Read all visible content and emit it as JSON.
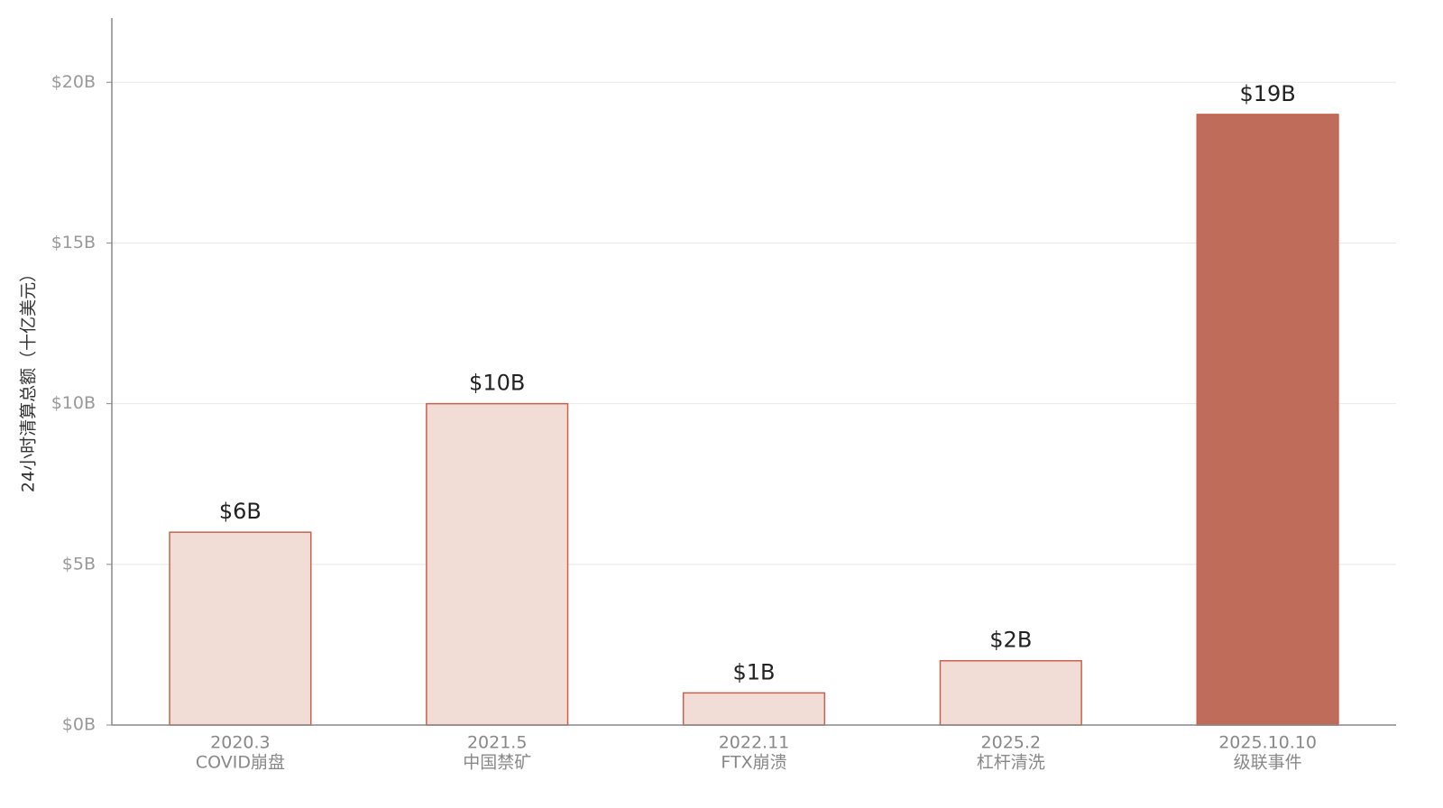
{
  "chart_data": {
    "type": "bar",
    "y_label": "24小时清算总额（十亿美元）",
    "categories": [
      [
        "2020.3",
        "COVID崩盘"
      ],
      [
        "2021.5",
        "中国禁矿"
      ],
      [
        "2022.11",
        "FTX崩溃"
      ],
      [
        "2025.2",
        "杠杆清洗"
      ],
      [
        "2025.10.10",
        "级联事件"
      ]
    ],
    "values": [
      6,
      10,
      1,
      2,
      19
    ],
    "value_labels": [
      "$6B",
      "$10B",
      "$1B",
      "$2B",
      "$19B"
    ],
    "colors": [
      "#f2ddd6",
      "#f2ddd6",
      "#f2ddd6",
      "#f2ddd6",
      "#bf6c5a"
    ],
    "edge_color": "#c8614d",
    "ylim": [
      0,
      22
    ],
    "yticks": [
      {
        "value": 0,
        "label": "$0B"
      },
      {
        "value": 5,
        "label": "$5B"
      },
      {
        "value": 10,
        "label": "$10B"
      },
      {
        "value": 15,
        "label": "$15B"
      },
      {
        "value": 20,
        "label": "$20B"
      }
    ],
    "grid": true
  }
}
